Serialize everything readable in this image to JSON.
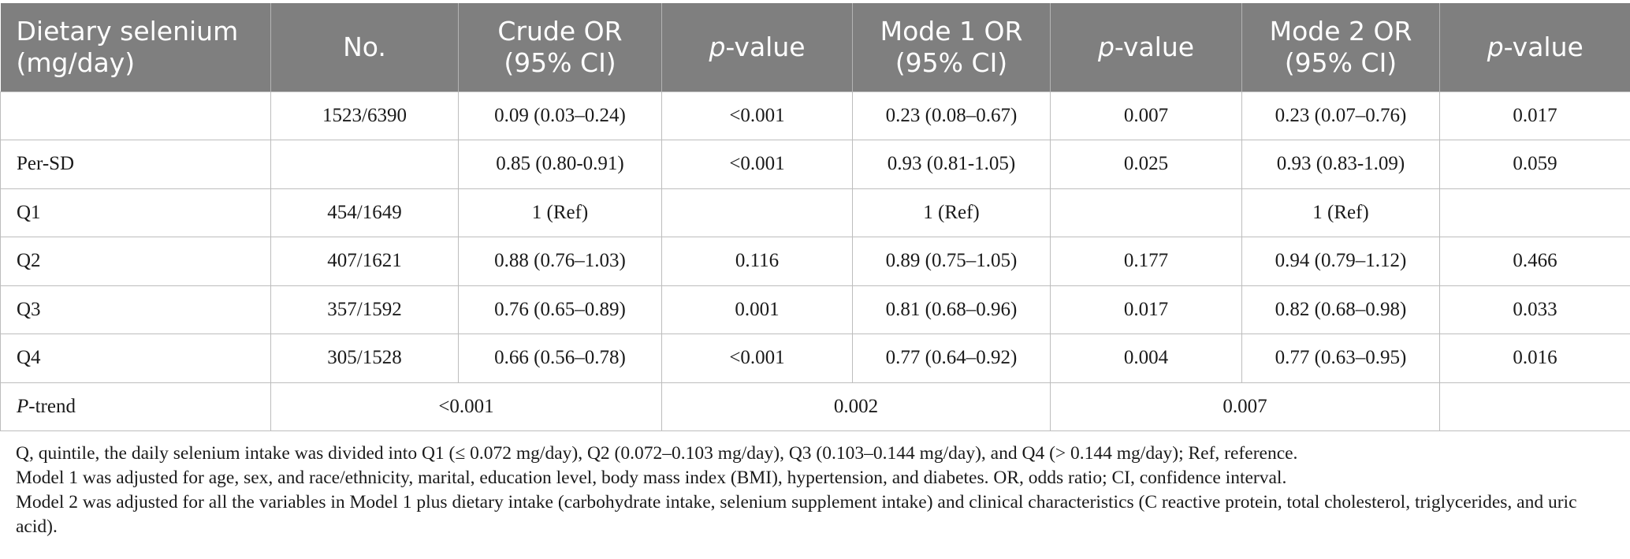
{
  "table": {
    "headers": [
      {
        "text": "Dietary selenium (mg/day)"
      },
      {
        "text": "No."
      },
      {
        "text": "Crude OR (95% CI)"
      },
      {
        "italic": "p",
        "rest": "-value"
      },
      {
        "text": "Mode 1 OR (95% CI)"
      },
      {
        "italic": "p",
        "rest": "-value"
      },
      {
        "text": "Mode 2 OR (95% CI)"
      },
      {
        "italic": "p",
        "rest": "-value"
      }
    ],
    "rows": [
      {
        "label": "",
        "no": "1523/6390",
        "crude_or": "0.09 (0.03–0.24)",
        "p1": "<0.001",
        "m1_or": "0.23 (0.08–0.67)",
        "p2": "0.007",
        "m2_or": "0.23 (0.07–0.76)",
        "p3": "0.017"
      },
      {
        "label": "Per-SD",
        "no": "",
        "crude_or": "0.85 (0.80-0.91)",
        "p1": "<0.001",
        "m1_or": "0.93 (0.81-1.05)",
        "p2": "0.025",
        "m2_or": "0.93 (0.83-1.09)",
        "p3": "0.059"
      },
      {
        "label": "Q1",
        "no": "454/1649",
        "crude_or": "1 (Ref)",
        "p1": "",
        "m1_or": "1 (Ref)",
        "p2": "",
        "m2_or": "1 (Ref)",
        "p3": ""
      },
      {
        "label": "Q2",
        "no": "407/1621",
        "crude_or": "0.88 (0.76–1.03)",
        "p1": "0.116",
        "m1_or": "0.89 (0.75–1.05)",
        "p2": "0.177",
        "m2_or": "0.94 (0.79–1.12)",
        "p3": "0.466"
      },
      {
        "label": "Q3",
        "no": "357/1592",
        "crude_or": "0.76 (0.65–0.89)",
        "p1": "0.001",
        "m1_or": "0.81 (0.68–0.96)",
        "p2": "0.017",
        "m2_or": "0.82 (0.68–0.98)",
        "p3": "0.033"
      },
      {
        "label": "Q4",
        "no": "305/1528",
        "crude_or": "0.66 (0.56–0.78)",
        "p1": "<0.001",
        "m1_or": "0.77 (0.64–0.92)",
        "p2": "0.004",
        "m2_or": "0.77 (0.63–0.95)",
        "p3": "0.016"
      }
    ],
    "ptrend": {
      "label_italic": "P",
      "label_rest": "-trend",
      "crude": "<0.001",
      "model1": "0.002",
      "model2": "0.007"
    }
  },
  "notes": [
    "Q, quintile, the daily selenium intake was divided into Q1 (≤ 0.072 mg/day), Q2 (0.072–0.103 mg/day), Q3 (0.103–0.144 mg/day), and Q4 (> 0.144 mg/day); Ref, reference.",
    "Model 1 was adjusted for age, sex, and race/ethnicity, marital, education level, body mass index (BMI), hypertension, and diabetes. OR, odds ratio; CI, confidence interval.",
    "Model 2 was adjusted for all the variables in Model 1 plus dietary intake (carbohydrate intake, selenium supplement intake) and clinical characteristics (C reactive protein, total cholesterol, triglycerides, and uric acid)."
  ],
  "colors": {
    "header_bg": "#7f7f7f",
    "header_text": "#ffffff",
    "border": "#bdbdbd"
  }
}
